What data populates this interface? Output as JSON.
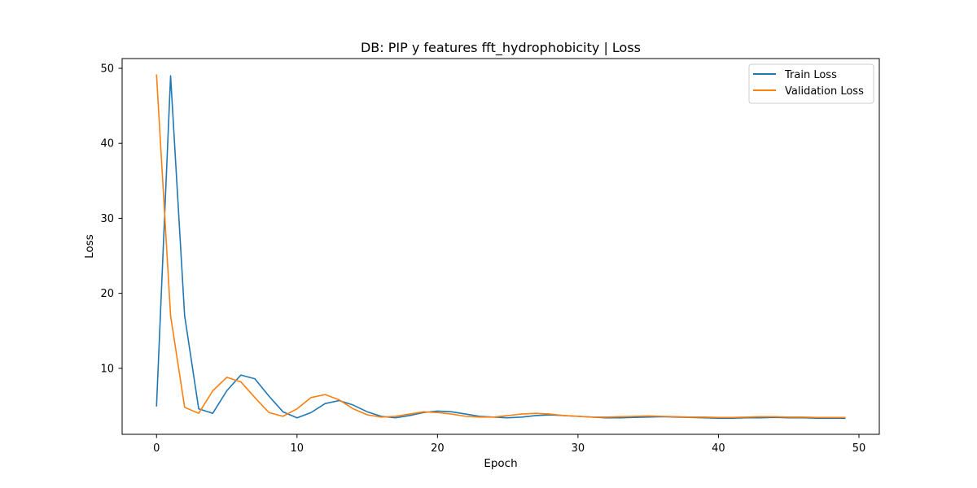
{
  "chart_data": {
    "type": "line",
    "title": "DB: PIP y features fft_hydrophobicity | Loss",
    "xlabel": "Epoch",
    "ylabel": "Loss",
    "xlim": [
      -2.45,
      51.45
    ],
    "ylim": [
      1.2,
      51.3
    ],
    "xticks": [
      0,
      10,
      20,
      30,
      40,
      50
    ],
    "yticks": [
      10,
      20,
      30,
      40,
      50
    ],
    "grid": false,
    "legend_position": "top-right",
    "x": [
      0,
      1,
      2,
      3,
      4,
      5,
      6,
      7,
      8,
      9,
      10,
      11,
      12,
      13,
      14,
      15,
      16,
      17,
      18,
      19,
      20,
      21,
      22,
      23,
      24,
      25,
      26,
      27,
      28,
      29,
      30,
      31,
      32,
      33,
      34,
      35,
      36,
      37,
      38,
      39,
      40,
      41,
      42,
      43,
      44,
      45,
      46,
      47,
      48,
      49
    ],
    "series": [
      {
        "name": "Train Loss",
        "color": "#1f77b4",
        "values": [
          5.0,
          49.0,
          17.0,
          4.6,
          4.0,
          7.0,
          9.1,
          8.6,
          6.3,
          4.2,
          3.4,
          4.1,
          5.3,
          5.7,
          5.1,
          4.2,
          3.6,
          3.4,
          3.7,
          4.1,
          4.3,
          4.2,
          3.9,
          3.6,
          3.5,
          3.4,
          3.5,
          3.7,
          3.8,
          3.7,
          3.6,
          3.5,
          3.4,
          3.4,
          3.45,
          3.5,
          3.55,
          3.5,
          3.45,
          3.4,
          3.35,
          3.35,
          3.4,
          3.4,
          3.45,
          3.4,
          3.4,
          3.35,
          3.35,
          3.35
        ]
      },
      {
        "name": "Validation Loss",
        "color": "#ff7f0e",
        "values": [
          49.1,
          17.0,
          4.8,
          4.0,
          7.0,
          8.8,
          8.2,
          6.1,
          4.1,
          3.6,
          4.6,
          6.1,
          6.5,
          5.8,
          4.6,
          3.8,
          3.5,
          3.6,
          3.9,
          4.2,
          4.1,
          3.9,
          3.6,
          3.5,
          3.5,
          3.7,
          3.9,
          4.0,
          3.9,
          3.7,
          3.6,
          3.5,
          3.5,
          3.55,
          3.6,
          3.65,
          3.6,
          3.55,
          3.5,
          3.5,
          3.45,
          3.45,
          3.5,
          3.55,
          3.55,
          3.5,
          3.5,
          3.45,
          3.45,
          3.45
        ]
      }
    ]
  }
}
